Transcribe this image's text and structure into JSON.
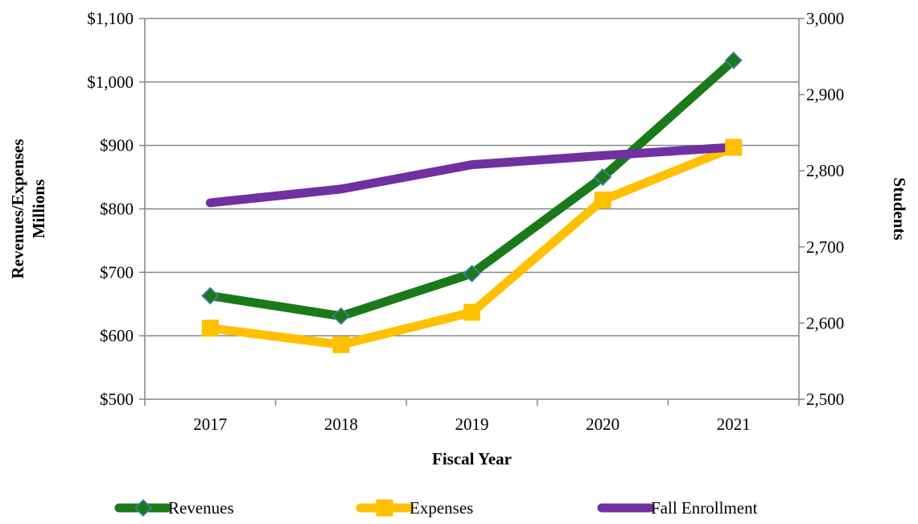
{
  "chart_data": {
    "type": "line",
    "xlabel": "Fiscal Year",
    "ylabel_lines": [
      "Revenues/Expenses",
      "Millions"
    ],
    "y2label": "Students",
    "categories": [
      "2017",
      "2018",
      "2019",
      "2020",
      "2021"
    ],
    "left_axis": {
      "min": 500,
      "max": 1100,
      "step": 100,
      "tick_labels": [
        "$500",
        "$600",
        "$700",
        "$800",
        "$900",
        "$1,000",
        "$1,100"
      ]
    },
    "right_axis": {
      "min": 2500,
      "max": 3000,
      "step": 100,
      "tick_labels": [
        "2,500",
        "2,600",
        "2,700",
        "2,800",
        "2,900",
        "3,000"
      ]
    },
    "gridlines": true,
    "legend_position": "bottom",
    "series": [
      {
        "name": "Revenues",
        "axis": "left",
        "values": [
          663,
          631,
          698,
          850,
          1034
        ],
        "color": "#1a7a1a",
        "marker": "diamond",
        "marker_color": "#1a7a1a",
        "marker_stroke": "#4a7eb8"
      },
      {
        "name": "Expenses",
        "axis": "left",
        "values": [
          612,
          586,
          637,
          814,
          897
        ],
        "color": "#ffc000",
        "marker": "square",
        "marker_color": "#ffc000",
        "marker_stroke": "#ffc000"
      },
      {
        "name": "Fall Enrollment",
        "axis": "right",
        "values": [
          2758,
          2776,
          2808,
          2820,
          2831
        ],
        "color": "#7030a0",
        "marker": "none",
        "marker_color": "#7030a0",
        "marker_stroke": "#7030a0"
      }
    ]
  }
}
